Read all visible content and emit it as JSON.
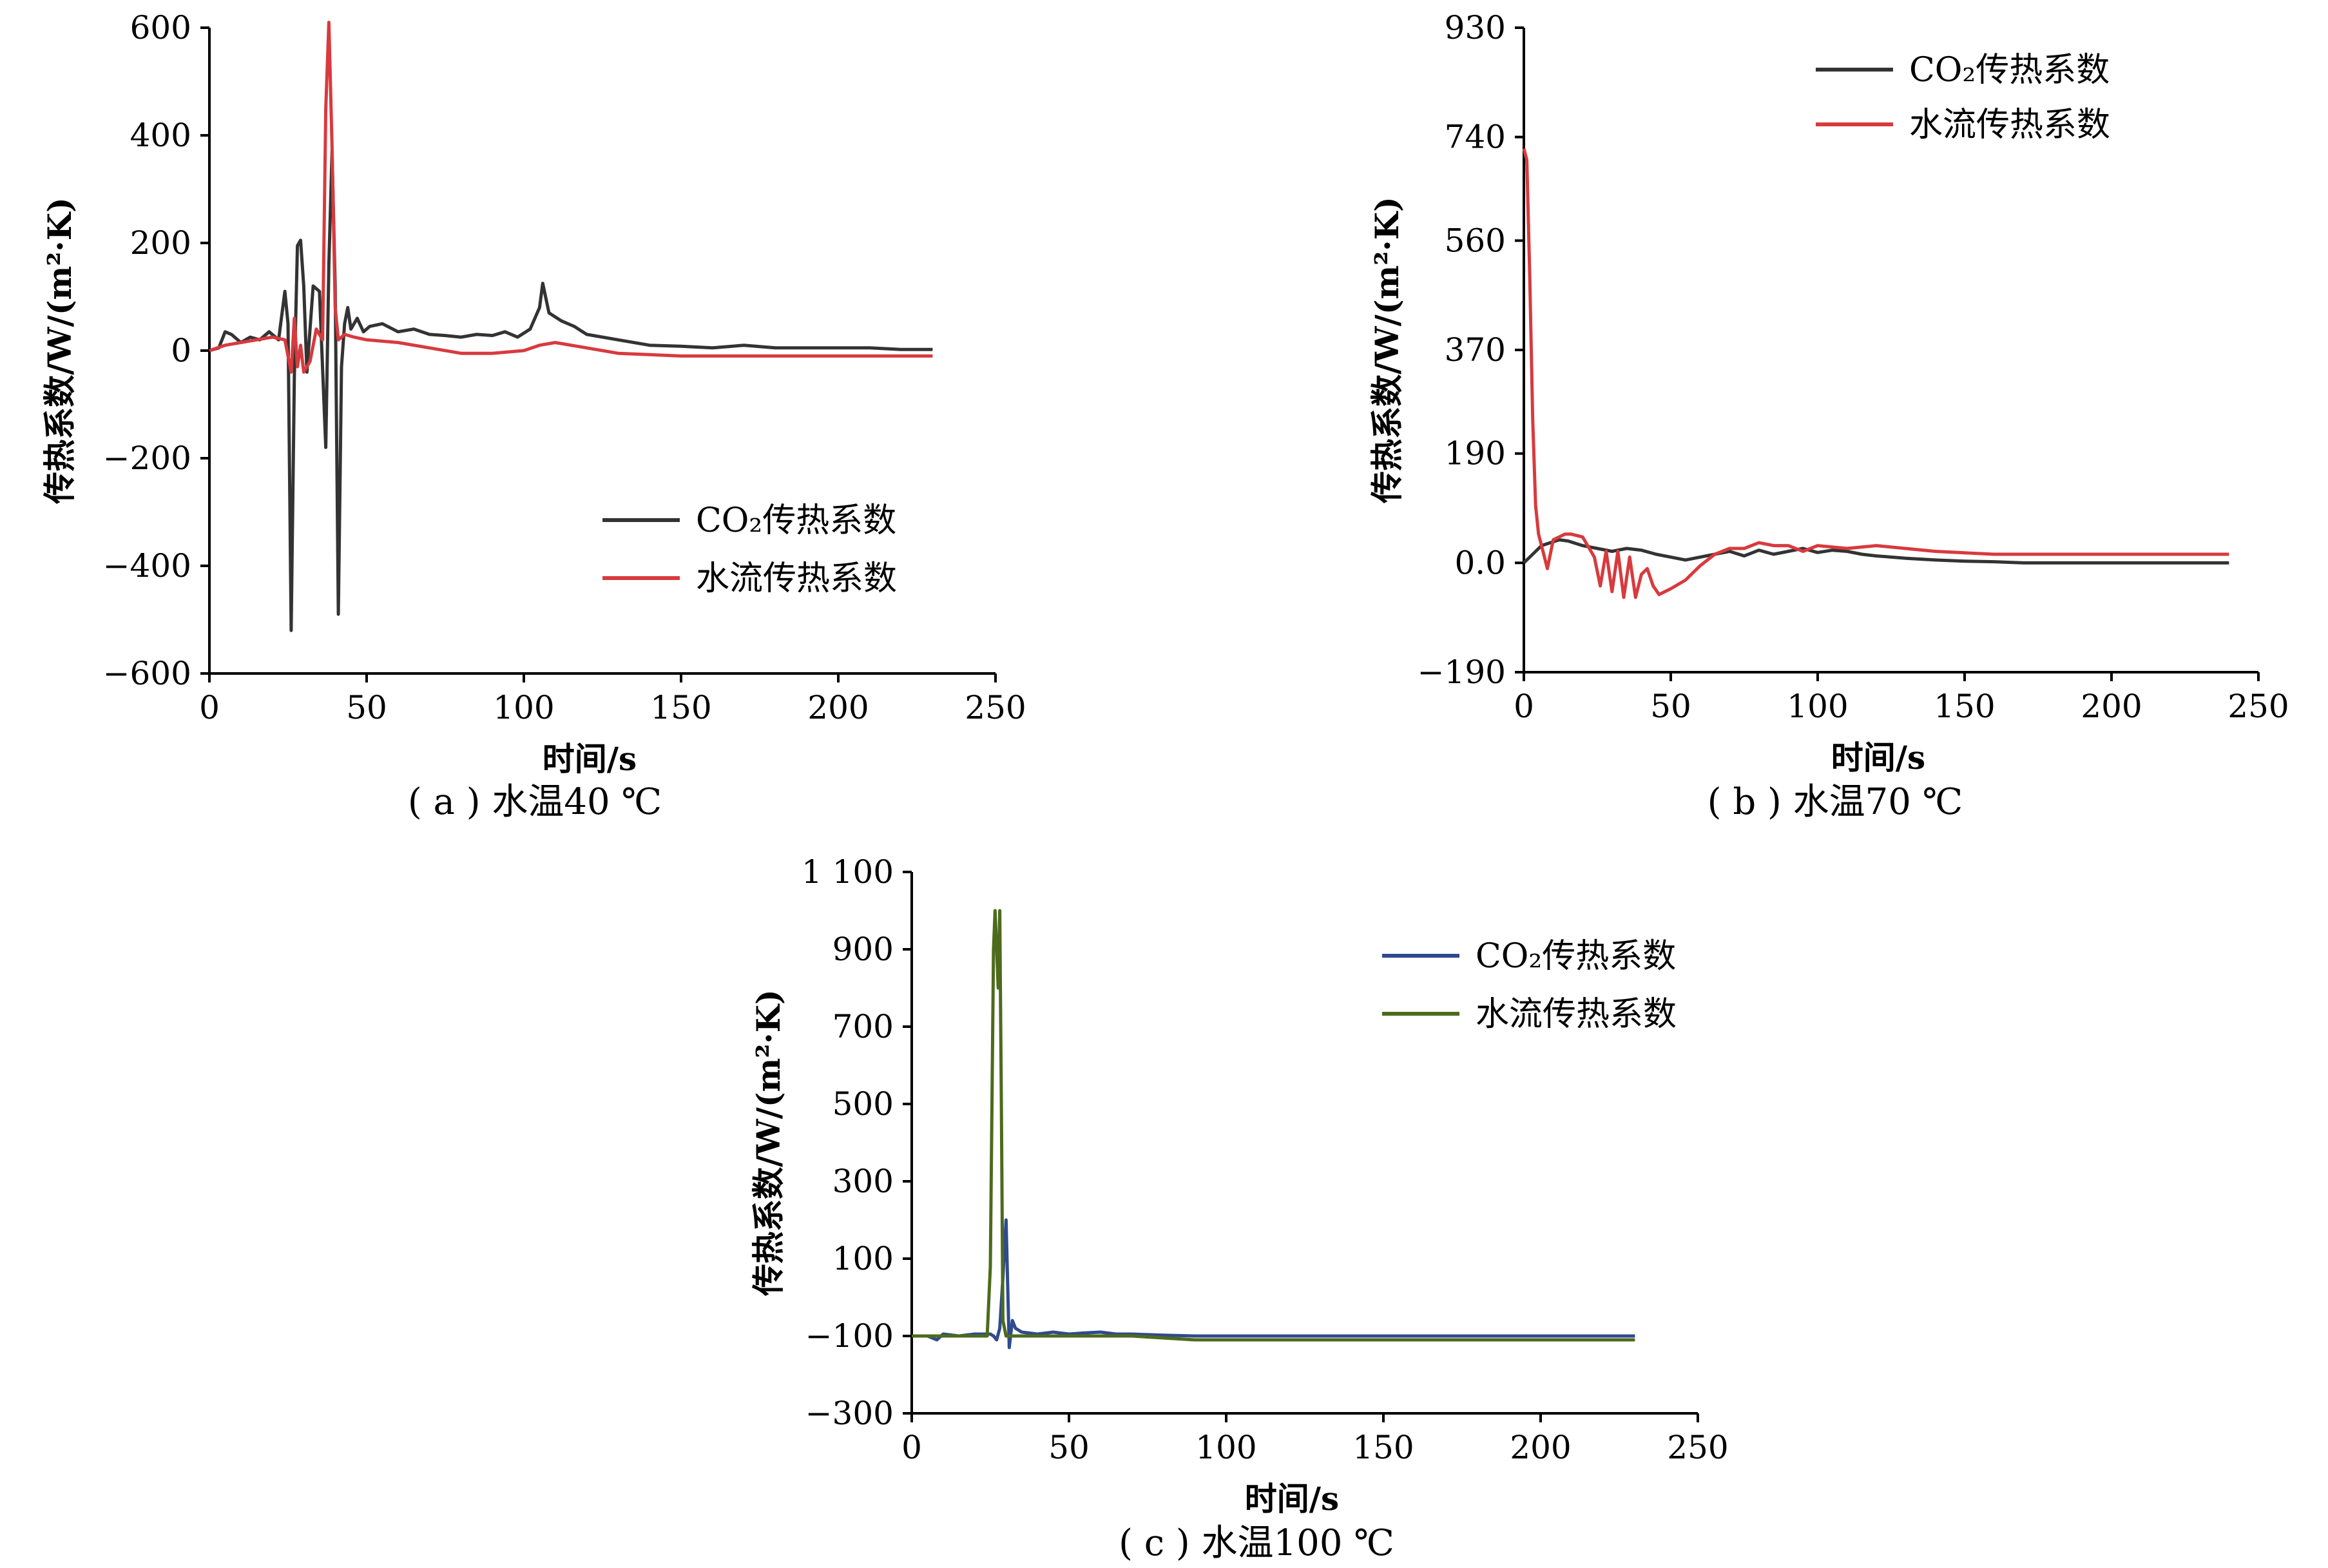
{
  "chart_data": [
    {
      "id": "a",
      "type": "line",
      "caption": "( a ) 水温40 ℃",
      "xlabel": "时间/s",
      "ylabel": "传热系数/W/(m²·K)",
      "xlim": [
        0,
        250
      ],
      "ylim": [
        -600,
        600
      ],
      "xticks": [
        "0",
        "50",
        "100",
        "150",
        "200",
        "250"
      ],
      "yticks": [
        "−600",
        "−400",
        "−200",
        "0",
        "200",
        "400",
        "600"
      ],
      "legend_position": "center-right",
      "series": [
        {
          "name": "CO₂传热系数",
          "color": "#333333",
          "x": [
            0,
            3,
            5,
            7,
            10,
            13,
            16,
            19,
            22,
            24,
            25,
            26,
            27,
            28,
            29,
            30,
            31,
            33,
            35,
            37,
            38,
            39,
            40,
            41,
            42,
            43,
            44,
            45,
            47,
            49,
            51,
            55,
            60,
            65,
            70,
            75,
            80,
            85,
            90,
            94,
            98,
            102,
            105,
            106,
            108,
            112,
            116,
            120,
            130,
            140,
            150,
            160,
            170,
            180,
            190,
            200,
            210,
            220,
            230
          ],
          "y": [
            0,
            5,
            35,
            30,
            15,
            25,
            20,
            35,
            20,
            110,
            50,
            -520,
            -50,
            195,
            205,
            120,
            -40,
            120,
            110,
            -180,
            160,
            370,
            120,
            -490,
            -30,
            50,
            80,
            40,
            60,
            35,
            45,
            50,
            35,
            40,
            30,
            28,
            25,
            30,
            28,
            35,
            25,
            40,
            80,
            125,
            70,
            55,
            45,
            30,
            20,
            10,
            8,
            5,
            10,
            5,
            5,
            5,
            5,
            2,
            2
          ]
        },
        {
          "name": "水流传热系数",
          "color": "#d83a3e",
          "x": [
            0,
            5,
            10,
            15,
            20,
            24,
            26,
            27,
            28,
            29,
            30,
            32,
            34,
            36,
            37,
            38,
            39,
            40,
            41,
            43,
            46,
            50,
            60,
            70,
            80,
            90,
            100,
            105,
            110,
            120,
            130,
            150,
            170,
            200,
            230
          ],
          "y": [
            0,
            10,
            15,
            20,
            25,
            20,
            -40,
            60,
            -30,
            10,
            -40,
            -20,
            40,
            20,
            450,
            610,
            380,
            80,
            20,
            30,
            25,
            20,
            15,
            5,
            -5,
            -5,
            0,
            10,
            15,
            5,
            -5,
            -10,
            -10,
            -10,
            -10
          ]
        }
      ]
    },
    {
      "id": "b",
      "type": "line",
      "caption": "( b ) 水温70 ℃",
      "xlabel": "时间/s",
      "ylabel": "传热系数/W/(m²·K)",
      "xlim": [
        0,
        250
      ],
      "ylim": [
        -190,
        930
      ],
      "xticks": [
        "0",
        "50",
        "100",
        "150",
        "200",
        "250"
      ],
      "ytick_values": [
        -190,
        0,
        190,
        370,
        560,
        740,
        930
      ],
      "yticks": [
        "−190",
        "0.0",
        "190",
        "370",
        "560",
        "740",
        "930"
      ],
      "legend_position": "top-right",
      "series": [
        {
          "name": "CO₂传热系数",
          "color": "#333333",
          "x": [
            0,
            3,
            6,
            9,
            12,
            15,
            20,
            25,
            30,
            35,
            40,
            45,
            50,
            55,
            60,
            65,
            70,
            75,
            80,
            85,
            90,
            95,
            100,
            105,
            110,
            115,
            120,
            130,
            140,
            150,
            160,
            170,
            180,
            200,
            220,
            240
          ],
          "y": [
            0,
            15,
            30,
            35,
            40,
            38,
            30,
            25,
            20,
            25,
            22,
            15,
            10,
            5,
            10,
            15,
            20,
            12,
            22,
            15,
            20,
            25,
            18,
            22,
            20,
            15,
            12,
            8,
            5,
            3,
            2,
            0,
            0,
            0,
            0,
            0
          ]
        },
        {
          "name": "水流传热系数",
          "color": "#d83a3e",
          "x": [
            0,
            1,
            2,
            3,
            4,
            5,
            6,
            8,
            10,
            12,
            14,
            16,
            20,
            24,
            26,
            28,
            30,
            32,
            34,
            36,
            38,
            40,
            42,
            44,
            46,
            48,
            50,
            55,
            60,
            65,
            70,
            75,
            80,
            85,
            90,
            95,
            100,
            110,
            120,
            140,
            160,
            180,
            200,
            220,
            240
          ],
          "y": [
            720,
            700,
            500,
            250,
            100,
            50,
            30,
            -10,
            40,
            45,
            50,
            50,
            45,
            10,
            -40,
            20,
            -50,
            20,
            -60,
            10,
            -60,
            -20,
            -10,
            -40,
            -55,
            -50,
            -45,
            -30,
            -5,
            15,
            25,
            25,
            35,
            30,
            30,
            20,
            30,
            25,
            30,
            20,
            15,
            15,
            15,
            15,
            15
          ]
        }
      ]
    },
    {
      "id": "c",
      "type": "line",
      "caption": "( c ) 水温100 ℃",
      "xlabel": "时间/s",
      "ylabel": "传热系数/W/(m²·K)",
      "xlim": [
        0,
        250
      ],
      "ylim": [
        -300,
        1100
      ],
      "xticks": [
        "0",
        "50",
        "100",
        "150",
        "200",
        "250"
      ],
      "yticks": [
        "−300",
        "−100",
        "100",
        "300",
        "500",
        "700",
        "900",
        "1 100"
      ],
      "legend_position": "top-right",
      "series": [
        {
          "name": "CO₂传热系数",
          "color": "#2f4a8f",
          "x": [
            0,
            5,
            8,
            10,
            15,
            20,
            25,
            26,
            27,
            28,
            29,
            30,
            31,
            32,
            33,
            35,
            40,
            45,
            50,
            55,
            60,
            65,
            70,
            80,
            90,
            100,
            150,
            200,
            230
          ],
          "y": [
            -100,
            -100,
            -110,
            -95,
            -100,
            -95,
            -95,
            -100,
            -110,
            -80,
            50,
            200,
            -130,
            -60,
            -80,
            -90,
            -95,
            -90,
            -95,
            -92,
            -90,
            -95,
            -95,
            -98,
            -100,
            -100,
            -100,
            -100,
            -100
          ],
          "dashed": false
        },
        {
          "name": "水流传热系数",
          "color": "#4d6b1c",
          "x": [
            0,
            10,
            20,
            24,
            25,
            26,
            26.5,
            27,
            27.5,
            28,
            28.5,
            29,
            30,
            35,
            50,
            70,
            90,
            100,
            150,
            200,
            230
          ],
          "y": [
            -100,
            -100,
            -100,
            -100,
            80,
            900,
            1000,
            900,
            800,
            1000,
            500,
            -60,
            -100,
            -100,
            -100,
            -100,
            -110,
            -110,
            -110,
            -110,
            -110
          ]
        }
      ]
    }
  ]
}
